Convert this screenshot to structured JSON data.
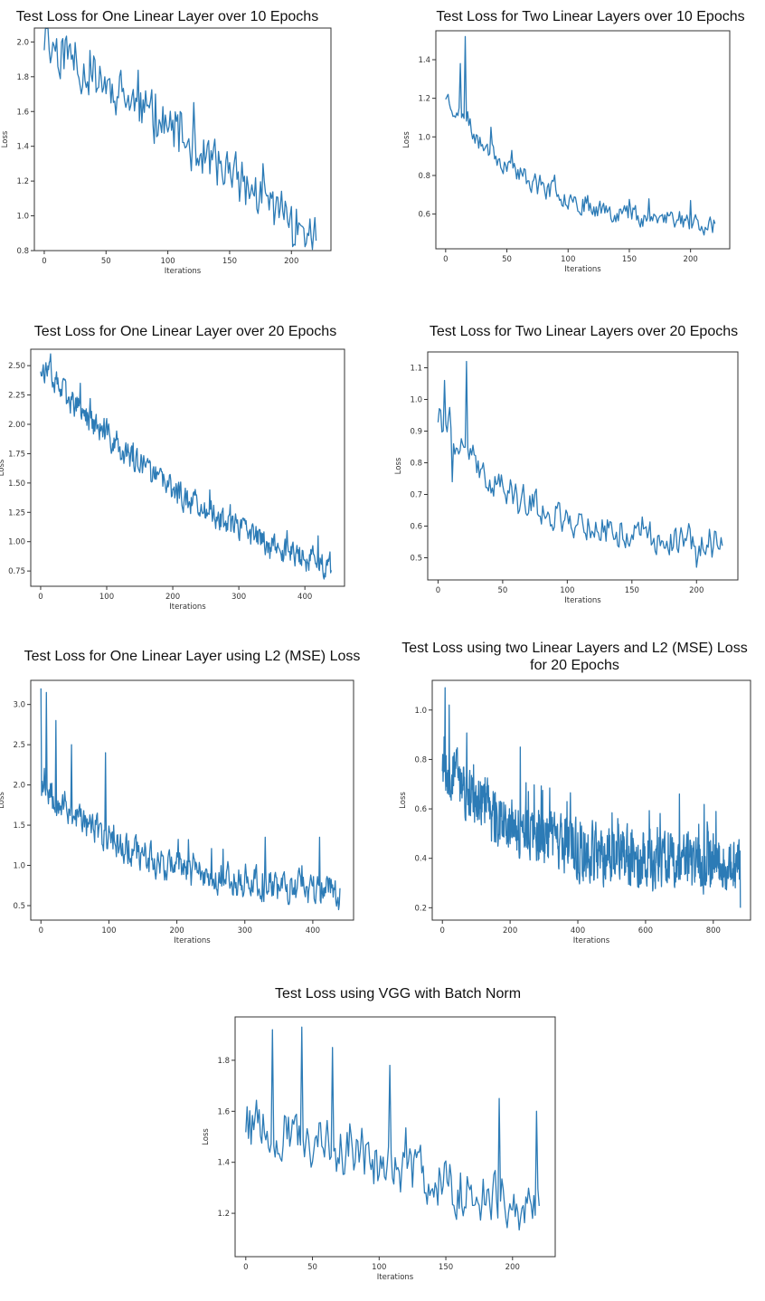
{
  "colors": {
    "line": "#2c7bb6",
    "axes": "#333333"
  },
  "chart_data": [
    {
      "id": "p1",
      "type": "line",
      "title": "Test Loss for One Linear Layer over 10 Epochs",
      "xlabel": "Iterations",
      "ylabel": "Loss",
      "xlim": [
        -8,
        232
      ],
      "ylim": [
        0.8,
        2.08
      ],
      "xticks": [
        0,
        50,
        100,
        150,
        200
      ],
      "yticks": [
        0.8,
        1.0,
        1.2,
        1.4,
        1.6,
        1.8,
        2.0
      ],
      "ytick_decimals": 1,
      "series": [
        {
          "n": 221,
          "start": 2.02,
          "end": 0.87,
          "decay": 0,
          "noise": 0.13,
          "seed": 11,
          "spikes": [
            [
              5,
              1.88
            ],
            [
              22,
              1.9
            ],
            [
              45,
              1.86
            ],
            [
              90,
              1.7
            ],
            [
              110,
              1.6
            ]
          ]
        }
      ]
    },
    {
      "id": "p2",
      "type": "line",
      "title": "Test Loss for Two Linear Layers over 10 Epochs",
      "xlabel": "Iterations",
      "ylabel": "Loss",
      "xlim": [
        -8,
        232
      ],
      "ylim": [
        0.42,
        1.55
      ],
      "xticks": [
        0,
        50,
        100,
        150,
        200
      ],
      "yticks": [
        0.6,
        0.8,
        1.0,
        1.2,
        1.4
      ],
      "ytick_decimals": 1,
      "series": [
        {
          "n": 221,
          "start": 1.22,
          "end": 0.55,
          "decay": 3.2,
          "noise": 0.05,
          "seed": 23,
          "spikes": [
            [
              16,
              1.52
            ],
            [
              12,
              1.38
            ],
            [
              37,
              1.05
            ],
            [
              60,
              0.78
            ],
            [
              102,
              0.7
            ],
            [
              200,
              0.67
            ]
          ]
        }
      ]
    },
    {
      "id": "p3",
      "type": "line",
      "title": "Test Loss for One Linear Layer over 20 Epochs",
      "xlabel": "Iterations",
      "ylabel": "Loss",
      "xlim": [
        -15,
        460
      ],
      "ylim": [
        0.62,
        2.64
      ],
      "xticks": [
        0,
        100,
        200,
        300,
        400
      ],
      "yticks": [
        0.75,
        1.0,
        1.25,
        1.5,
        1.75,
        2.0,
        2.25,
        2.5
      ],
      "ytick_decimals": 2,
      "series": [
        {
          "n": 441,
          "start": 2.5,
          "end": 0.78,
          "decay": 1.3,
          "noise": 0.1,
          "seed": 37,
          "spikes": [
            [
              15,
              2.6
            ],
            [
              60,
              2.35
            ],
            [
              420,
              1.05
            ]
          ]
        }
      ]
    },
    {
      "id": "p4",
      "type": "line",
      "title": "Test Loss for Two Linear Layers over 20 Epochs",
      "xlabel": "Iterations",
      "ylabel": "Loss",
      "xlim": [
        -8,
        232
      ],
      "ylim": [
        0.43,
        1.15
      ],
      "xticks": [
        0,
        50,
        100,
        150,
        200
      ],
      "yticks": [
        0.5,
        0.6,
        0.7,
        0.8,
        0.9,
        1.0,
        1.1
      ],
      "ytick_decimals": 1,
      "series": [
        {
          "n": 221,
          "start": 0.95,
          "end": 0.55,
          "decay": 3.5,
          "noise": 0.045,
          "seed": 41,
          "spikes": [
            [
              22,
              1.12
            ],
            [
              5,
              1.06
            ],
            [
              11,
              0.74
            ],
            [
              33,
              0.78
            ],
            [
              200,
              0.47
            ]
          ]
        }
      ]
    },
    {
      "id": "p5",
      "type": "line",
      "title": "Test Loss for One Linear Layer using L2 (MSE) Loss",
      "xlabel": "Iterations",
      "ylabel": "Loss",
      "xlim": [
        -15,
        460
      ],
      "ylim": [
        0.32,
        3.3
      ],
      "xticks": [
        0,
        100,
        200,
        300,
        400
      ],
      "yticks": [
        0.5,
        1.0,
        1.5,
        2.0,
        2.5,
        3.0
      ],
      "ytick_decimals": 1,
      "series": [
        {
          "n": 441,
          "start": 2.05,
          "end": 0.68,
          "decay": 3.0,
          "noise": 0.18,
          "seed": 53,
          "spikes": [
            [
              0,
              3.2
            ],
            [
              8,
              3.15
            ],
            [
              22,
              2.8
            ],
            [
              45,
              2.5
            ],
            [
              95,
              2.4
            ],
            [
              330,
              1.35
            ],
            [
              410,
              1.35
            ],
            [
              438,
              0.45
            ]
          ]
        }
      ]
    },
    {
      "id": "p6",
      "type": "line",
      "title": "Test Loss using two Linear Layers and L2 (MSE) Loss for 20 Epochs",
      "xlabel": "Iterations",
      "ylabel": "Loss",
      "xlim": [
        -30,
        910
      ],
      "ylim": [
        0.15,
        1.12
      ],
      "xticks": [
        0,
        200,
        400,
        600,
        800
      ],
      "yticks": [
        0.2,
        0.4,
        0.6,
        0.8,
        1.0
      ],
      "ytick_decimals": 1,
      "series": [
        {
          "n": 881,
          "start": 0.8,
          "end": 0.38,
          "decay": 4.0,
          "noise": 0.1,
          "seed": 67,
          "spikes": [
            [
              8,
              1.09
            ],
            [
              20,
              1.02
            ],
            [
              230,
              0.85
            ],
            [
              700,
              0.66
            ],
            [
              880,
              0.2
            ]
          ]
        }
      ]
    },
    {
      "id": "p7",
      "type": "line",
      "title": "Test Loss using VGG with Batch Norm",
      "xlabel": "Iterations",
      "ylabel": "Loss",
      "xlim": [
        -8,
        232
      ],
      "ylim": [
        1.03,
        1.97
      ],
      "xticks": [
        0,
        50,
        100,
        150,
        200
      ],
      "yticks": [
        1.2,
        1.4,
        1.6,
        1.8
      ],
      "ytick_decimals": 1,
      "series": [
        {
          "n": 221,
          "start": 1.56,
          "end": 1.2,
          "decay": 0,
          "noise": 0.09,
          "seed": 79,
          "spikes": [
            [
              20,
              1.92
            ],
            [
              42,
              1.93
            ],
            [
              65,
              1.85
            ],
            [
              108,
              1.78
            ],
            [
              190,
              1.65
            ],
            [
              218,
              1.6
            ]
          ]
        }
      ]
    }
  ]
}
